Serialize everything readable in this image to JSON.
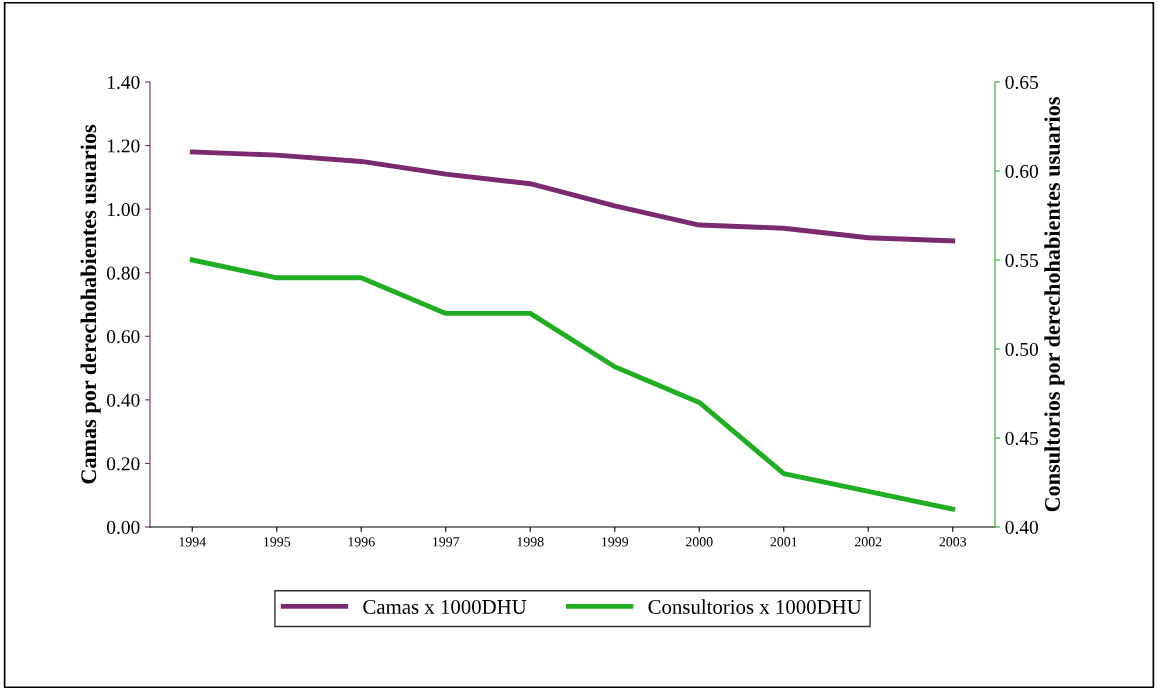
{
  "chart_data": {
    "type": "line",
    "categories": [
      "1994",
      "1995",
      "1996",
      "1997",
      "1998",
      "1999",
      "2000",
      "2001",
      "2002",
      "2003"
    ],
    "ylabel": "Camas por derechohabientes usuarios",
    "y2label": "Consultorios por derechohabientes usuarios",
    "ylim": [
      0,
      1.4
    ],
    "yticks": [
      {
        "value": 0,
        "label": "0.00"
      },
      {
        "value": 0.2,
        "label": "0.20"
      },
      {
        "value": 0.4,
        "label": "0.40"
      },
      {
        "value": 0.6,
        "label": "0.60"
      },
      {
        "value": 0.8,
        "label": "0.80"
      },
      {
        "value": 1.0,
        "label": "1.00"
      },
      {
        "value": 1.2,
        "label": "1.20"
      },
      {
        "value": 1.4,
        "label": "1.40"
      }
    ],
    "y2lim": [
      0.4,
      0.65
    ],
    "y2ticks": [
      {
        "value": 0.4,
        "label": "0.40"
      },
      {
        "value": 0.45,
        "label": "0.45"
      },
      {
        "value": 0.5,
        "label": "0.50"
      },
      {
        "value": 0.55,
        "label": "0.55"
      },
      {
        "value": 0.6,
        "label": "0.60"
      },
      {
        "value": 0.65,
        "label": "0.65"
      }
    ],
    "series": [
      {
        "name": "Camas x 1000DHU",
        "color": "#7a2a6e",
        "values": [
          1.18,
          1.17,
          1.15,
          1.11,
          1.08,
          1.01,
          0.95,
          0.94,
          0.91,
          0.9
        ]
      },
      {
        "name": "Consultorios x 1000DHU",
        "color": "#1fae22",
        "axis": "y2",
        "values": [
          0.55,
          0.54,
          0.54,
          0.52,
          0.52,
          0.49,
          0.47,
          0.43,
          0.42,
          0.41
        ]
      }
    ],
    "grid": false,
    "legend": "bottom",
    "marker": "none",
    "line_style": "solid"
  }
}
